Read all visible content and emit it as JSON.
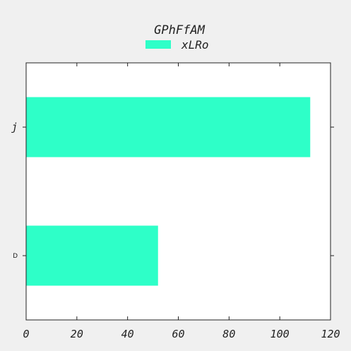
{
  "chart_data": {
    "type": "bar",
    "orientation": "horizontal",
    "title": "GPhFfAM",
    "xlabel": "",
    "ylabel": "",
    "categories": [
      "D",
      "j"
    ],
    "series": [
      {
        "name": "xLRo",
        "values": [
          52,
          112
        ],
        "color": "#2effc8"
      }
    ],
    "xlim": [
      0,
      120
    ],
    "xticks": [
      "0",
      "20",
      "40",
      "60",
      "80",
      "100",
      "120"
    ],
    "grid": false,
    "legend_position": "top-center"
  },
  "colors": {
    "background": "#f0f0f0",
    "plot_background": "#ffffff",
    "axis": "#222222"
  }
}
